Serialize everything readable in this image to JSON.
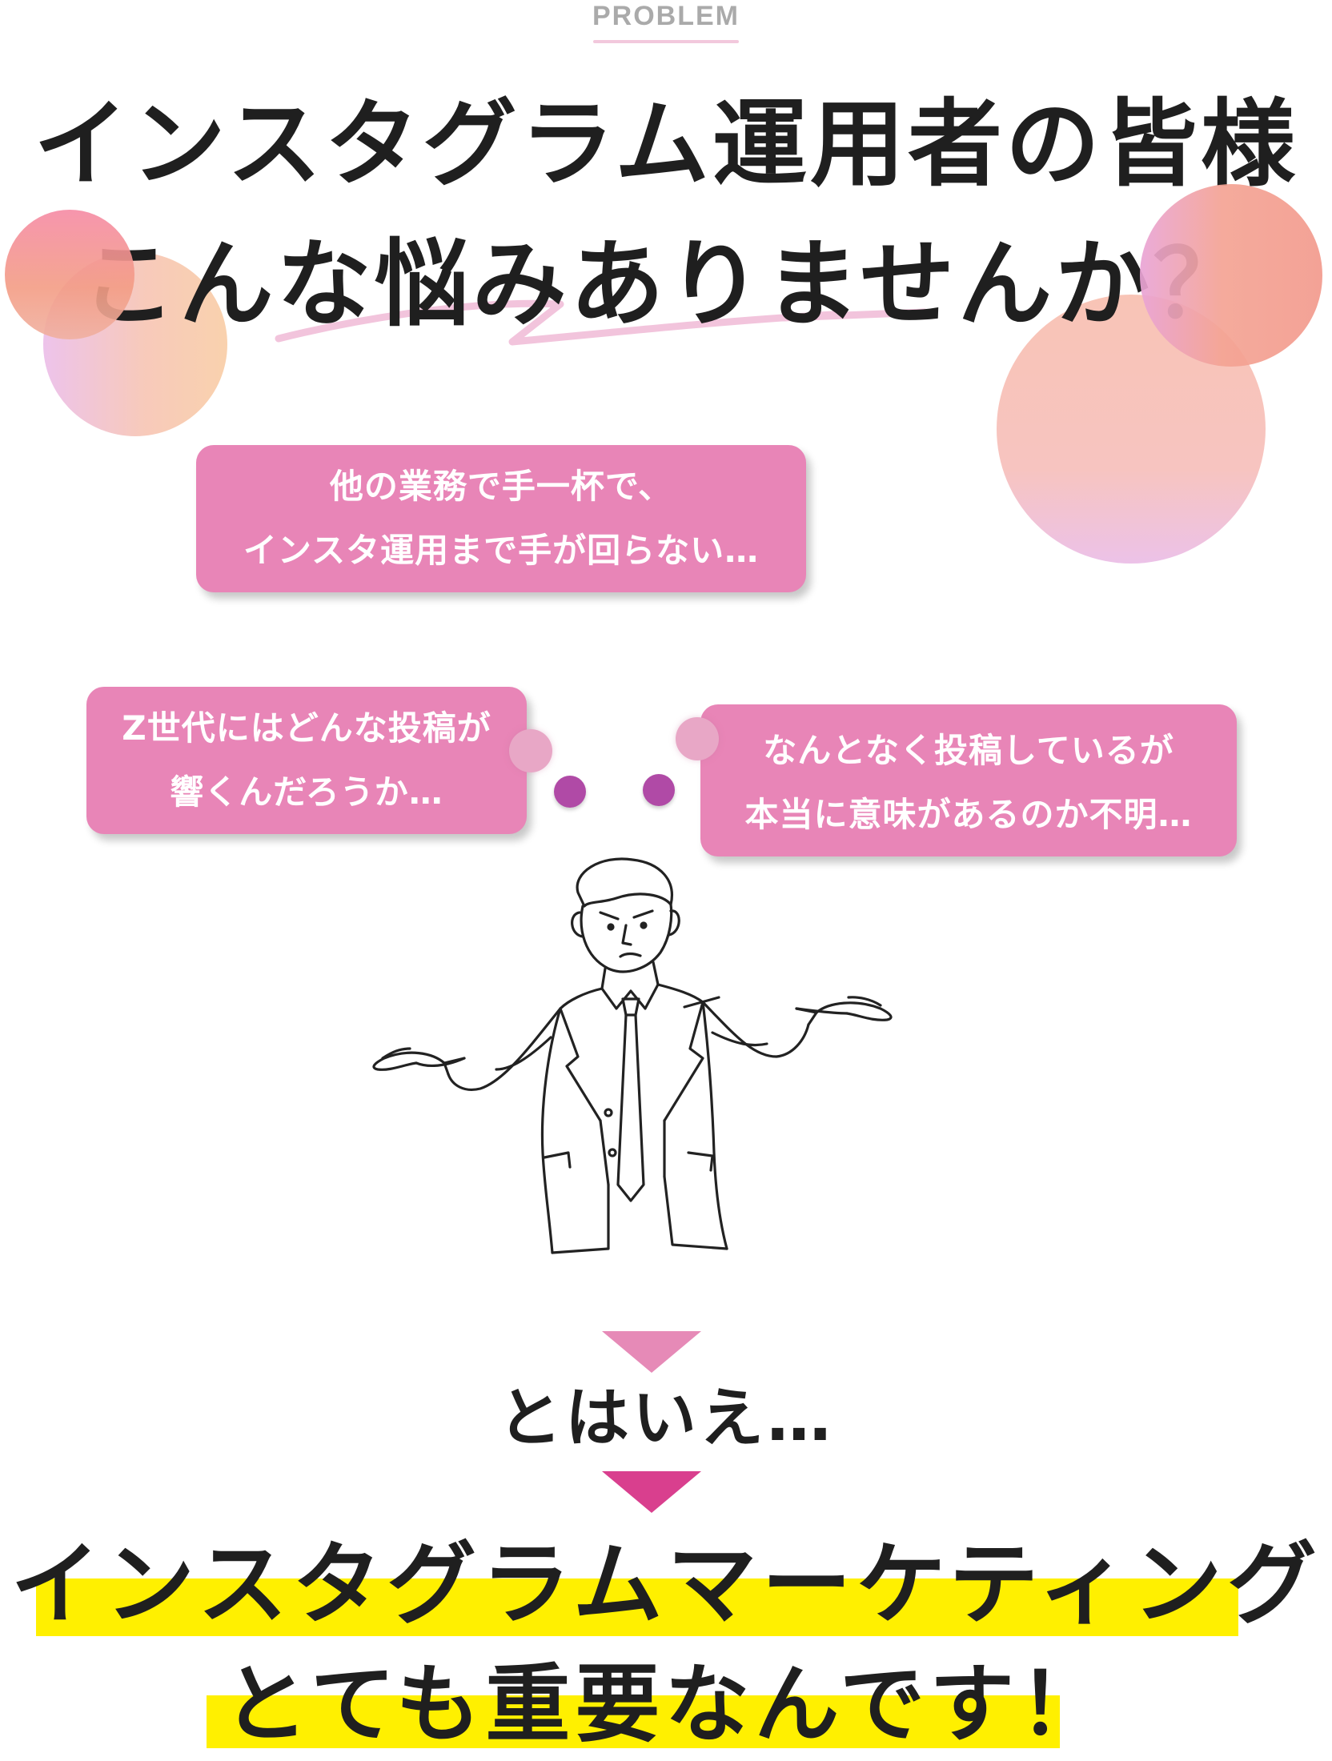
{
  "section_label": "PROBLEM",
  "headline": {
    "line1": "インスタグラム運用者の皆様",
    "line2": "こんな悩みありませんか？"
  },
  "bubbles": [
    {
      "lines": [
        "他の業務で手一杯で、",
        "インスタ運用まで手が回らない…"
      ]
    },
    {
      "lines": [
        "Z世代にはどんな投稿が",
        "響くんだろうか…"
      ]
    },
    {
      "lines": [
        "なんとなく投稿しているが",
        "本当に意味があるのか不明…"
      ]
    }
  ],
  "transition": "とはいえ…",
  "conclusion": {
    "line1": "インスタグラムマーケティング",
    "line2": "とても重要なんです！"
  },
  "colors": {
    "bubble": "#e885b7",
    "arrow_light": "#e68ab7",
    "arrow_dark": "#d93f8e",
    "highlight": "#fff000",
    "dot_purple": "#b04aa6"
  },
  "icons": {
    "illustration": "confused-shrugging-businessman-icon",
    "arrows": "triangle-down-icon"
  }
}
